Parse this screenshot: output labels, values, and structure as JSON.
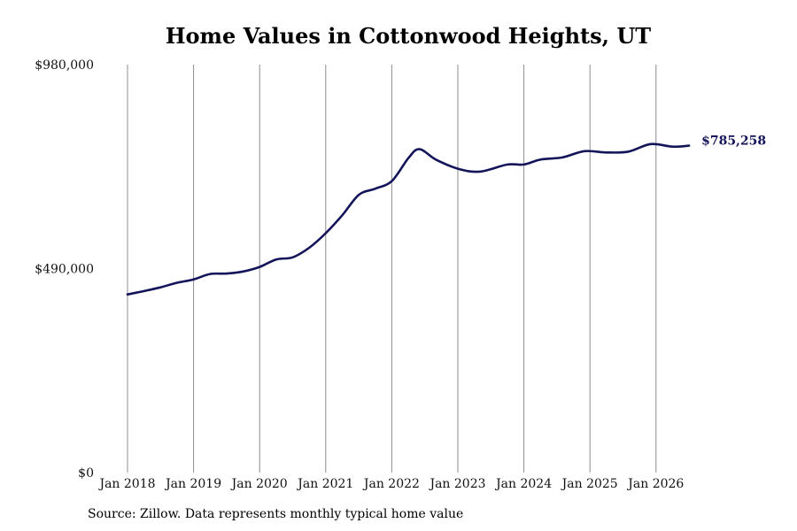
{
  "chart_data": {
    "type": "line",
    "title": "Home Values in Cottonwood Heights, UT",
    "xlabel": "",
    "ylabel": "",
    "ylim": [
      0,
      980000
    ],
    "y_ticks": [
      "$0",
      "$490,000",
      "$980,000"
    ],
    "y_tick_values": [
      0,
      490000,
      980000
    ],
    "x_ticks": [
      "Jan 2018",
      "Jan 2019",
      "Jan 2020",
      "Jan 2021",
      "Jan 2022",
      "Jan 2023",
      "Jan 2024",
      "Jan 2025",
      "Jan 2026"
    ],
    "x_tick_years": [
      2018,
      2019,
      2020,
      2021,
      2022,
      2023,
      2024,
      2025,
      2026
    ],
    "grid": "vertical",
    "series": [
      {
        "color": "#14145a",
        "points": [
          {
            "x": "2018-01",
            "y": 428000
          },
          {
            "x": "2018-04",
            "y": 436000
          },
          {
            "x": "2018-07",
            "y": 445000
          },
          {
            "x": "2018-10",
            "y": 456000
          },
          {
            "x": "2019-01",
            "y": 464000
          },
          {
            "x": "2019-04",
            "y": 477000
          },
          {
            "x": "2019-07",
            "y": 478000
          },
          {
            "x": "2019-10",
            "y": 483000
          },
          {
            "x": "2020-01",
            "y": 494000
          },
          {
            "x": "2020-04",
            "y": 512000
          },
          {
            "x": "2020-07",
            "y": 517000
          },
          {
            "x": "2020-10",
            "y": 540000
          },
          {
            "x": "2021-01",
            "y": 575000
          },
          {
            "x": "2021-04",
            "y": 618000
          },
          {
            "x": "2021-07",
            "y": 667000
          },
          {
            "x": "2021-10",
            "y": 682000
          },
          {
            "x": "2022-01",
            "y": 700000
          },
          {
            "x": "2022-04",
            "y": 755000
          },
          {
            "x": "2022-06",
            "y": 777000
          },
          {
            "x": "2022-09",
            "y": 752000
          },
          {
            "x": "2023-01",
            "y": 730000
          },
          {
            "x": "2023-05",
            "y": 723000
          },
          {
            "x": "2023-10",
            "y": 740000
          },
          {
            "x": "2024-01",
            "y": 740000
          },
          {
            "x": "2024-04",
            "y": 752000
          },
          {
            "x": "2024-08",
            "y": 757000
          },
          {
            "x": "2024-12",
            "y": 772000
          },
          {
            "x": "2025-04",
            "y": 769000
          },
          {
            "x": "2025-08",
            "y": 771000
          },
          {
            "x": "2025-12",
            "y": 789000
          },
          {
            "x": "2026-04",
            "y": 783000
          },
          {
            "x": "2026-07",
            "y": 785258
          }
        ]
      }
    ],
    "end_label": "$785,258"
  },
  "source_note": "Source: Zillow. Data represents monthly typical home value"
}
